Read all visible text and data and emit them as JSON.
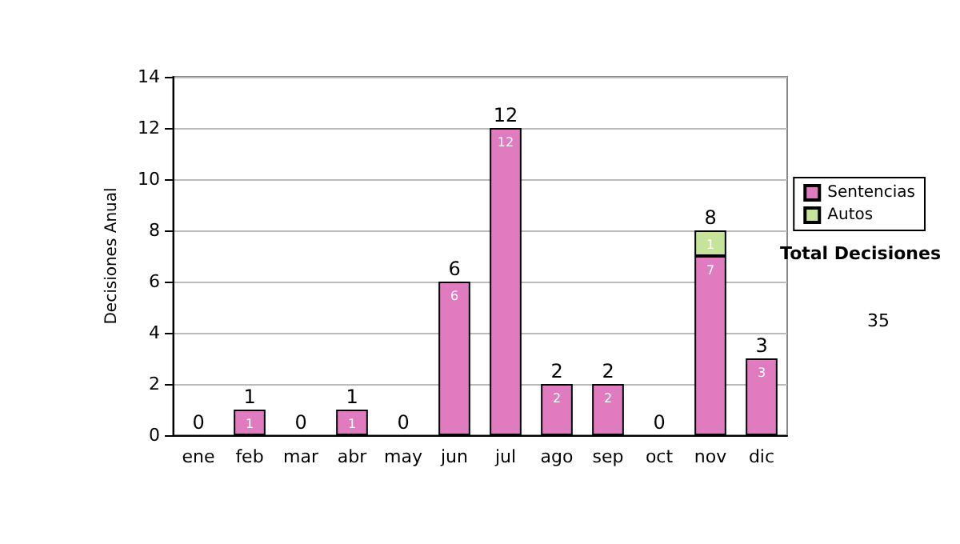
{
  "chart_data": {
    "type": "bar",
    "stacked": true,
    "ylabel": "Decisiones Anual",
    "categories": [
      "ene",
      "feb",
      "mar",
      "abr",
      "may",
      "jun",
      "jul",
      "ago",
      "sep",
      "oct",
      "nov",
      "dic"
    ],
    "series": [
      {
        "name": "Sentencias",
        "color": "#e07bbf",
        "values": [
          0,
          1,
          0,
          1,
          0,
          6,
          12,
          2,
          2,
          0,
          7,
          3
        ],
        "value_labels": [
          null,
          "1",
          null,
          "1",
          null,
          "6",
          "12",
          "2",
          "2",
          null,
          "7",
          "3"
        ]
      },
      {
        "name": "Autos",
        "color": "#c6e39a",
        "values": [
          0,
          0,
          0,
          0,
          0,
          0,
          0,
          0,
          0,
          0,
          1,
          0
        ],
        "value_labels": [
          null,
          null,
          null,
          null,
          null,
          null,
          null,
          null,
          null,
          null,
          "1",
          null
        ]
      }
    ],
    "totals": [
      "0",
      "1",
      "0",
      "1",
      "0",
      "6",
      "12",
      "2",
      "2",
      "0",
      "8",
      "3"
    ],
    "ylim": [
      0,
      14
    ],
    "yticks": [
      0,
      2,
      4,
      6,
      8,
      10,
      12,
      14
    ],
    "grid": "y",
    "legend": "right",
    "annotations": [
      "Total Decisiones",
      "35"
    ]
  }
}
